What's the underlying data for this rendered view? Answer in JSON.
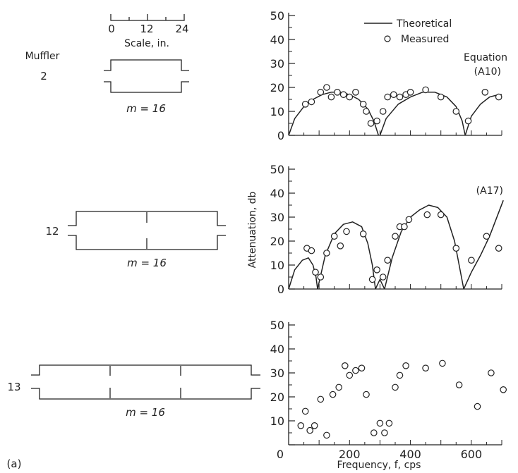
{
  "labels": {
    "scale_ticks": [
      "0",
      "12",
      "24"
    ],
    "scale_caption": "Scale, in.",
    "muffler_header": "Muffler",
    "panel_tag": "(a)"
  },
  "mufflers": [
    {
      "id": "2",
      "m_label": "m = 16",
      "chambers": 1
    },
    {
      "id": "12",
      "m_label": "m = 16",
      "chambers": 2
    },
    {
      "id": "13",
      "m_label": "m = 16",
      "chambers": 3
    }
  ],
  "chart_data": [
    {
      "type": "scatter",
      "panel": "muffler-2",
      "xlim": [
        0,
        700
      ],
      "ylim": [
        0,
        50
      ],
      "yticks": [
        "0",
        "10",
        "20",
        "30",
        "40",
        "50"
      ],
      "xticks": [],
      "legend": [
        "Theoretical",
        "Measured"
      ],
      "legend_position": "top-right",
      "annotation": [
        "Equation",
        "(A10)"
      ],
      "theory_segments": [
        {
          "x": [
            0,
            20,
            50,
            80,
            110,
            140,
            170,
            200,
            230,
            260,
            280,
            295
          ],
          "y": [
            0,
            7,
            12,
            15,
            17,
            18,
            18,
            17,
            15,
            11,
            6,
            0
          ]
        },
        {
          "x": [
            300,
            320,
            360,
            400,
            440,
            480,
            520,
            550,
            570,
            580
          ],
          "y": [
            0,
            7,
            13,
            16,
            18,
            18,
            16,
            12,
            6,
            0
          ]
        },
        {
          "x": [
            580,
            600,
            630,
            660,
            690,
            700
          ],
          "y": [
            0,
            8,
            13,
            16,
            17,
            17
          ]
        }
      ],
      "measured": {
        "x": [
          55,
          75,
          105,
          125,
          140,
          160,
          180,
          200,
          220,
          245,
          255,
          270,
          290,
          310,
          325,
          345,
          365,
          385,
          400,
          450,
          500,
          550,
          590,
          645,
          690
        ],
        "y": [
          13,
          14,
          18,
          20,
          16,
          18,
          17,
          16,
          18,
          13,
          10,
          5,
          6,
          10,
          16,
          17,
          16,
          17,
          18,
          19,
          16,
          10,
          6,
          18,
          16
        ]
      }
    },
    {
      "type": "scatter",
      "panel": "muffler-12",
      "xlim": [
        0,
        700
      ],
      "ylim": [
        0,
        50
      ],
      "yticks": [
        "0",
        "10",
        "20",
        "30",
        "40",
        "50"
      ],
      "xticks": [],
      "ylabel": "Attenuation, db",
      "annotation": [
        "(A17)"
      ],
      "theory_segments": [
        {
          "x": [
            0,
            20,
            45,
            65,
            80,
            90,
            95
          ],
          "y": [
            0,
            8,
            12,
            13,
            10,
            5,
            0
          ]
        },
        {
          "x": [
            95,
            120,
            150,
            180,
            210,
            240,
            260,
            275,
            285
          ],
          "y": [
            0,
            14,
            23,
            27,
            28,
            26,
            19,
            10,
            0
          ]
        },
        {
          "x": [
            285,
            300,
            315
          ],
          "y": [
            0,
            4,
            0
          ]
        },
        {
          "x": [
            315,
            340,
            370,
            400,
            430,
            460,
            490,
            520,
            545,
            560,
            575
          ],
          "y": [
            0,
            13,
            24,
            30,
            33,
            35,
            34,
            30,
            20,
            10,
            0
          ]
        },
        {
          "x": [
            575,
            600,
            630,
            660,
            690,
            705
          ],
          "y": [
            0,
            7,
            14,
            22,
            32,
            37
          ]
        }
      ],
      "measured": {
        "x": [
          60,
          75,
          88,
          105,
          125,
          150,
          170,
          190,
          245,
          275,
          290,
          310,
          325,
          350,
          365,
          380,
          395,
          455,
          500,
          550,
          600,
          650,
          690
        ],
        "y": [
          17,
          16,
          7,
          5,
          15,
          22,
          18,
          24,
          23,
          4,
          8,
          5,
          12,
          22,
          26,
          26,
          29,
          31,
          31,
          17,
          12,
          22,
          17
        ]
      }
    },
    {
      "type": "scatter",
      "panel": "muffler-13",
      "xlim": [
        0,
        700
      ],
      "ylim": [
        0,
        50
      ],
      "yticks": [
        "10",
        "20",
        "30",
        "40",
        "50"
      ],
      "xticks": [
        "0",
        "200",
        "400",
        "600"
      ],
      "xlabel": "Frequency, f, cps",
      "measured": {
        "x": [
          40,
          55,
          70,
          85,
          105,
          125,
          145,
          165,
          185,
          200,
          220,
          240,
          255,
          280,
          300,
          315,
          330,
          350,
          365,
          385,
          450,
          505,
          560,
          620,
          665,
          705
        ],
        "y": [
          8,
          14,
          6,
          8,
          19,
          4,
          21,
          24,
          33,
          29,
          31,
          32,
          21,
          5,
          9,
          5,
          9,
          24,
          29,
          33,
          32,
          34,
          25,
          16,
          30,
          23
        ]
      }
    }
  ]
}
